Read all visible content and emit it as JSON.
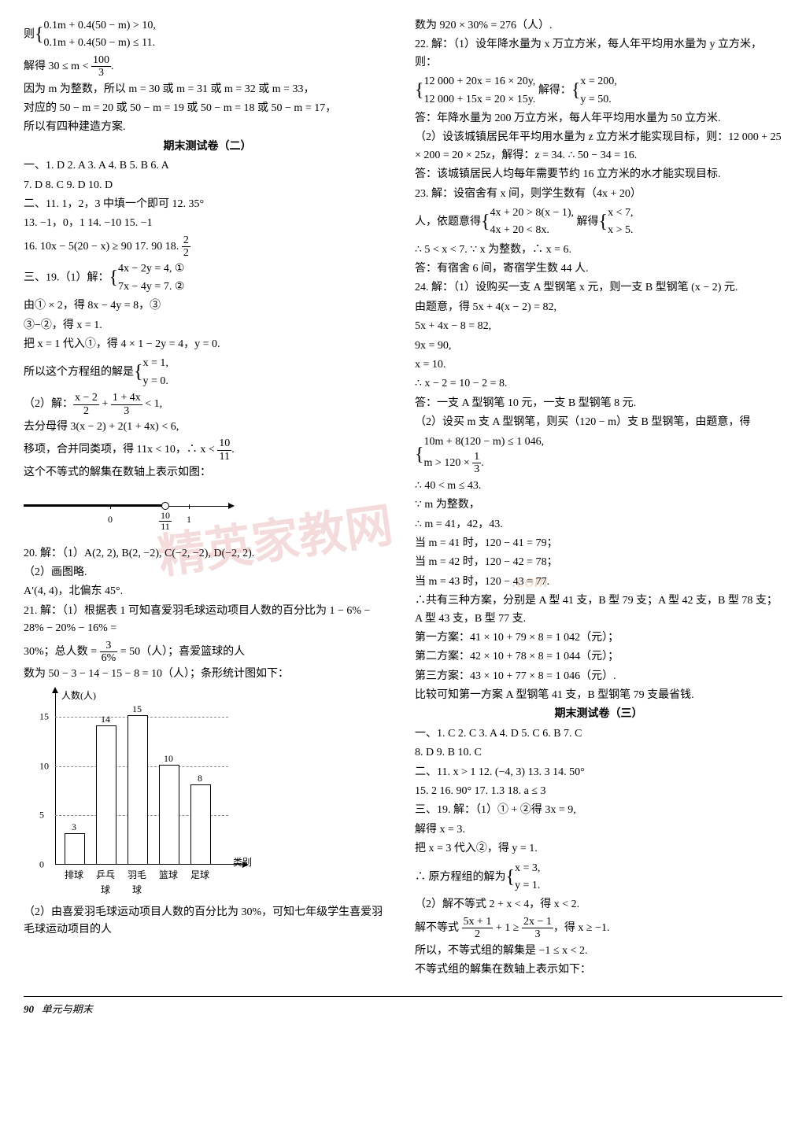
{
  "watermark1": "精英家教网",
  "watermark2": ".com",
  "left": {
    "l1": "则",
    "l1a": "0.1m + 0.4(50 − m) > 10,",
    "l1b": "0.1m + 0.4(50 − m) ≤ 11.",
    "l2a": "解得 30 ≤ m <",
    "l2frac_num": "100",
    "l2frac_den": "3",
    "l2b": ".",
    "l3": "因为 m 为整数，所以 m = 30 或 m = 31 或 m = 32 或 m = 33，",
    "l4": "对应的 50 − m = 20 或 50 − m = 19 或 50 − m = 18 或 50 − m = 17，",
    "l5": "所以有四种建造方案.",
    "h1": "期末测试卷（二）",
    "a1": "一、1. D  2. A  3. A  4. B  5. B  6. A",
    "a2": "7. D  8. C  9. D  10. D",
    "a3": "二、11. 1，2，3 中填一个即可  12. 35°",
    "a4": "13. −1，0，1  14. −10  15. −1",
    "a5a": "16. 10x − 5(20 − x) ≥ 90  17. 90  18.",
    "a5frac_num": "2",
    "a5frac_den": "2",
    "a6": "三、19.（1）解：",
    "a6a": "4x − 2y = 4, ①",
    "a6b": "7x − 4y = 7. ②",
    "a7": "由① × 2，得 8x − 4y = 8，③",
    "a8": "③−②，得 x = 1.",
    "a9": "把 x = 1 代入①，得 4 × 1 − 2y = 4，y = 0.",
    "a10": "所以这个方程组的解是",
    "a10a": "x = 1,",
    "a10b": "y = 0.",
    "a11": "（2）解：",
    "a11frac1_num": "x − 2",
    "a11frac1_den": "2",
    "a11mid": " + ",
    "a11frac2_num": "1 + 4x",
    "a11frac2_den": "3",
    "a11end": " < 1,",
    "a12": "去分母得 3(x − 2) + 2(1 + 4x) < 6,",
    "a13a": "移项，合并同类项，得 11x < 10，∴ x < ",
    "a13frac_num": "10",
    "a13frac_den": "11",
    "a13b": ".",
    "a14": "这个不等式的解集在数轴上表示如图：",
    "nl": {
      "zero": "0",
      "one": "1",
      "mark_num": "10",
      "mark_den": "11"
    },
    "a20": "20. 解：（1）A(2, 2), B(2, −2), C(−2, −2), D(−2, 2).",
    "a20b": "（2）画图略.",
    "a20c": "A′(4, 4)，北偏东 45°.",
    "a21": "21. 解：（1）根据表 1 可知喜爱羽毛球运动项目人数的百分比为 1 − 6% − 28% − 20% − 16% =",
    "a21b_a": "30%；总人数 = ",
    "a21b_frac_num": "3",
    "a21b_frac_den": "6%",
    "a21b_b": " = 50（人）；喜爱篮球的人",
    "a21c": "数为 50 − 3 − 14 − 15 − 8 = 10（人）；条形统计图如下：",
    "chart": {
      "ylabel": "人数(人)",
      "xlabel": "类别",
      "yticks": [
        5,
        10,
        15
      ],
      "categories": [
        "排球",
        "乒乓球",
        "羽毛球",
        "篮球",
        "足球"
      ],
      "values": [
        3,
        14,
        15,
        10,
        8
      ],
      "bar_color": "#ffffff",
      "bar_border": "#000000",
      "grid_color": "#888888",
      "ylim": 16
    },
    "a22": "（2）由喜爱羽毛球运动项目人数的百分比为 30%，可知七年级学生喜爱羽毛球运动项目的人"
  },
  "right": {
    "r1": "数为 920 × 30% = 276（人）.",
    "r2": "22. 解：（1）设年降水量为 x 万立方米，每人年平均用水量为 y 立方米，则：",
    "r2a": "12 000 + 20x = 16 × 20y,",
    "r2b": "12 000 + 15x = 20 × 15y.",
    "r2c": "解得：",
    "r2d": "x = 200,",
    "r2e": "y = 50.",
    "r3": "答：年降水量为 200 万立方米，每人年平均用水量为 50 立方米.",
    "r4": "（2）设该城镇居民年平均用水量为 z 立方米才能实现目标，则：12 000 + 25 × 200 = 20 × 25z，解得：z = 34.  ∴ 50 − 34 = 16.",
    "r5": "答：该城镇居民人均每年需要节约 16 立方米的水才能实现目标.",
    "r6": "23. 解：设宿舍有 x 间，则学生数有（4x + 20）",
    "r6a": "人，依题意得",
    "r6b": "4x + 20 > 8(x − 1),",
    "r6c": "4x + 20 < 8x.",
    "r6d": "解得",
    "r6e": "x < 7,",
    "r6f": "x > 5.",
    "r7": "∴ 5 < x < 7.  ∵ x 为整数，∴ x = 6.",
    "r8": "答：有宿舍 6 间，寄宿学生数 44 人.",
    "r9": "24. 解：（1）设购买一支 A 型钢笔 x 元，则一支 B 型钢笔 (x − 2) 元.",
    "r10": "由题意，得 5x + 4(x − 2) = 82,",
    "r11": "5x + 4x − 8 = 82,",
    "r12": "9x = 90,",
    "r13": "x = 10.",
    "r14": "∴ x − 2 = 10 − 2 = 8.",
    "r15": "答：一支 A 型钢笔 10 元，一支 B 型钢笔 8 元.",
    "r16": "（2）设买 m 支 A 型钢笔，则买（120 − m）支 B 型钢笔，由题意，得",
    "r16a": "10m + 8(120 − m) ≤ 1 046,",
    "r16b_a": "m > 120 × ",
    "r16b_num": "1",
    "r16b_den": "3",
    "r16b_b": ".",
    "r17": "∴ 40 < m ≤ 43.",
    "r18": "∵ m 为整数，",
    "r19": "∴ m = 41，42，43.",
    "r20": "当 m = 41 时，120 − 41 = 79；",
    "r21": "当 m = 42 时，120 − 42 = 78；",
    "r22": "当 m = 43 时，120 − 43 = 77.",
    "r23": "∴共有三种方案，分别是 A 型 41 支，B 型 79 支；A 型 42 支，B 型 78 支；A 型 43 支，B 型 77 支.",
    "r24": "第一方案：41 × 10 + 79 × 8 = 1 042（元）；",
    "r25": "第二方案：42 × 10 + 78 × 8 = 1 044（元）；",
    "r26": "第三方案：43 × 10 + 77 × 8 = 1 046（元）.",
    "r27": "比较可知第一方案 A 型钢笔 41 支，B 型钢笔 79 支最省钱.",
    "h3": "期末测试卷（三）",
    "b1": "一、1. C  2. C  3. A  4. D  5. C  6. B  7. C",
    "b2": "8. D  9. B  10. C",
    "b3": "二、11. x > 1  12. (−4, 3)  13. 3  14. 50°",
    "b4": "15. 2  16. 90°  17. 1.3  18. a ≤ 3",
    "b5": "三、19. 解：（1）① + ②得 3x = 9,",
    "b6": "解得 x = 3.",
    "b7": "把 x = 3 代入②，得 y = 1.",
    "b8": "∴ 原方程组的解为",
    "b8a": "x = 3,",
    "b8b": "y = 1.",
    "b9": "（2）解不等式 2 + x < 4，得 x < 2.",
    "b10a": "解不等式 ",
    "b10f1_num": "5x + 1",
    "b10f1_den": "2",
    "b10b": " + 1 ≥ ",
    "b10f2_num": "2x − 1",
    "b10f2_den": "3",
    "b10c": "，得 x ≥ −1.",
    "b11": "所以，不等式组的解集是 −1 ≤ x < 2.",
    "b12": "不等式组的解集在数轴上表示如下："
  },
  "footer": {
    "page": "90",
    "title": "单元与期末"
  }
}
